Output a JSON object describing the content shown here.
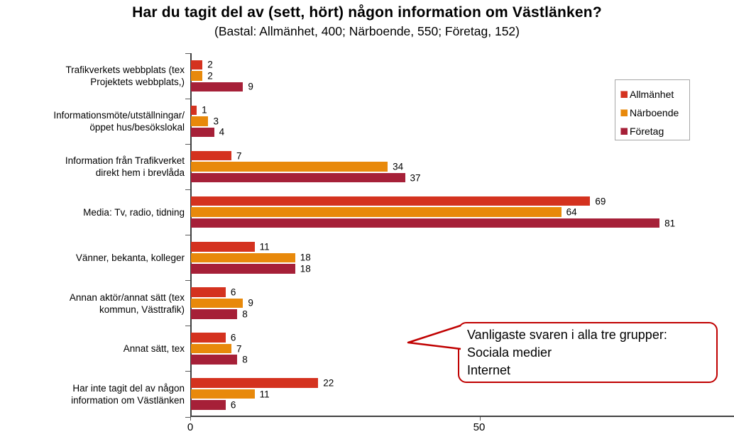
{
  "chart_data": {
    "type": "bar",
    "orientation": "horizontal",
    "title": "Har du tagit del av (sett, hört) någon information om Västlänken?",
    "subtitle": "(Bastal: Allmänhet, 400; Närboende, 550; Företag, 152)",
    "categories": [
      {
        "lines": [
          "Trafikverkets webbplats (tex",
          "Projektets webbplats,)"
        ]
      },
      {
        "lines": [
          "Informationsmöte/utställningar/",
          "öppet hus/besökslokal"
        ]
      },
      {
        "lines": [
          "Information från Trafikverket",
          "direkt hem i brevlåda"
        ]
      },
      {
        "lines": [
          "Media: Tv, radio, tidning"
        ]
      },
      {
        "lines": [
          "Vänner, bekanta, kolleger"
        ]
      },
      {
        "lines": [
          "Annan aktör/annat sätt (tex",
          "kommun, Västtrafik)"
        ]
      },
      {
        "lines": [
          "Annat sätt, tex"
        ]
      },
      {
        "lines": [
          "Har inte tagit del av någon",
          "information om Västlänken"
        ]
      }
    ],
    "series": [
      {
        "name": "Allmänhet",
        "color": "#D4321F",
        "values": [
          2,
          1,
          7,
          69,
          11,
          6,
          6,
          22
        ]
      },
      {
        "name": "Närboende",
        "color": "#E8890B",
        "values": [
          2,
          3,
          34,
          64,
          18,
          9,
          7,
          11
        ]
      },
      {
        "name": "Företag",
        "color": "#A62038",
        "values": [
          9,
          4,
          37,
          81,
          18,
          8,
          8,
          6
        ]
      }
    ],
    "x_axis": {
      "ticks": [
        "0",
        "50"
      ],
      "tick_values": [
        0,
        50
      ],
      "xlim": [
        0,
        94
      ]
    },
    "legend_position": "right-top",
    "grid": false
  },
  "callout": {
    "lines": [
      "Vanligaste svaren i alla tre grupper:",
      "Sociala medier",
      "Internet"
    ],
    "border_color": "#C00000"
  },
  "colors": {
    "axis": "#404040",
    "tick": "#595959",
    "legend_border": "#a6a6a6"
  }
}
